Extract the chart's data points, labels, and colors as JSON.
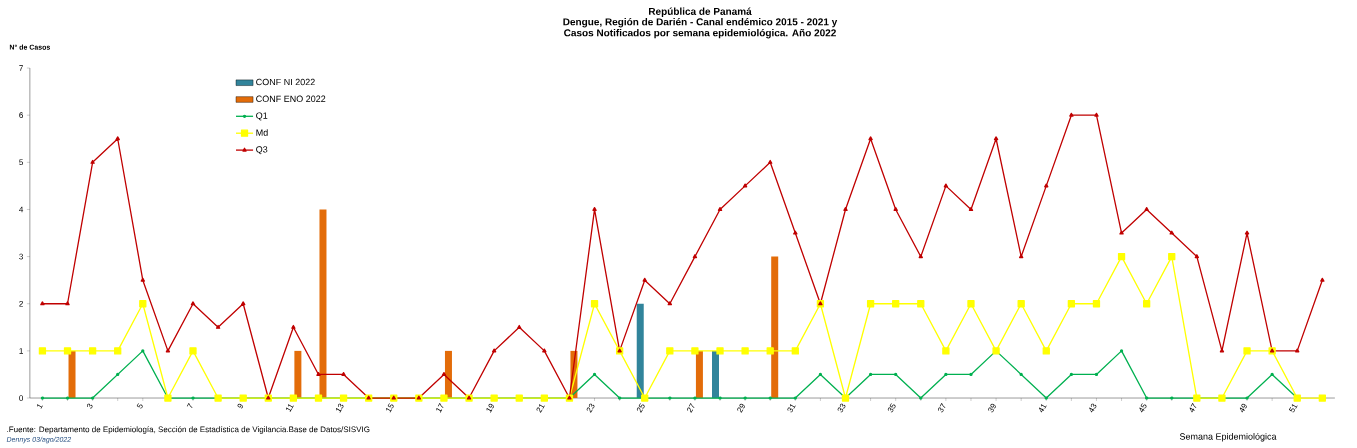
{
  "chart_data": {
    "type": "line",
    "title": "República de Panamá",
    "subtitle": "Dengue, Región de Darién - Canal endémico 2015 - 2021 y Casos Notificados por semana epidemiológica. Año 2022",
    "ylabel": "N° de Casos",
    "xlabel": "Semana Epidemiológica",
    "annotations": [
      ".Fuente: Departamento de Epidemiología, Sección de Estadística de Vigilancia.Base de Datos/SISVIG",
      "Dennys 03/ago/2022"
    ],
    "categories": [
      "1",
      null,
      "3",
      null,
      "5",
      null,
      "7",
      null,
      "9",
      null,
      "11",
      null,
      "13",
      null,
      "15",
      null,
      "17",
      null,
      "19",
      null,
      "21",
      null,
      "23",
      null,
      "25",
      null,
      "27",
      null,
      "29",
      null,
      "31",
      null,
      "33",
      null,
      "35",
      null,
      "37",
      null,
      "39",
      null,
      "41",
      null,
      "43",
      null,
      "45",
      null,
      "47",
      null,
      "49",
      null,
      "51",
      null
    ],
    "ylim": [
      0,
      7
    ],
    "yticks": [
      0,
      1,
      2,
      3,
      4,
      5,
      6,
      7
    ],
    "grid": false,
    "legend": "top left",
    "series": [
      {
        "name": "CONF NI 2022",
        "type": "bar",
        "color": "#31849b",
        "values": [
          null,
          null,
          null,
          null,
          null,
          null,
          null,
          null,
          null,
          null,
          null,
          null,
          null,
          null,
          null,
          null,
          null,
          null,
          null,
          null,
          null,
          null,
          null,
          null,
          2,
          null,
          null,
          1,
          null,
          null,
          null,
          null,
          null,
          null,
          null,
          null,
          null,
          null,
          null,
          null,
          null,
          null,
          null,
          null,
          null,
          null,
          null,
          null,
          null,
          null,
          null,
          null
        ]
      },
      {
        "name": "CONF ENO 2022",
        "type": "bar",
        "color": "#e36c09",
        "values": [
          null,
          1,
          null,
          null,
          null,
          null,
          null,
          null,
          null,
          null,
          1,
          4,
          null,
          null,
          null,
          null,
          1,
          null,
          null,
          null,
          null,
          1,
          null,
          null,
          null,
          null,
          1,
          null,
          null,
          3,
          null,
          null,
          null,
          null,
          null,
          null,
          null,
          null,
          null,
          null,
          null,
          null,
          null,
          null,
          null,
          null,
          null,
          null,
          null,
          null,
          null,
          null
        ]
      },
      {
        "name": "Q1",
        "color": "#00b050",
        "marker": "circle",
        "values": [
          0,
          0,
          0,
          0.5,
          1,
          0,
          0,
          0,
          0,
          0,
          0,
          0,
          0,
          0,
          0,
          0,
          0,
          0,
          0,
          0,
          0,
          0,
          0.5,
          0,
          0,
          0,
          0,
          0,
          0,
          0,
          0,
          0.5,
          0,
          0.5,
          0.5,
          0,
          0.5,
          0.5,
          1,
          0.5,
          0,
          0.5,
          0.5,
          1,
          0,
          0,
          0,
          0,
          0,
          0.5,
          0,
          null
        ]
      },
      {
        "name": "Md",
        "color": "#ffff00",
        "marker": "square",
        "values": [
          1,
          1,
          1,
          1,
          2,
          0,
          1,
          0,
          0,
          0,
          0,
          0,
          0,
          0,
          0,
          0,
          0,
          0,
          0,
          0,
          0,
          0,
          2,
          1,
          0,
          1,
          1,
          1,
          1,
          1,
          1,
          2,
          0,
          2,
          2,
          2,
          1,
          2,
          1,
          2,
          1,
          2,
          2,
          3,
          2,
          3,
          0,
          0,
          1,
          1,
          0,
          0
        ]
      },
      {
        "name": "Q3",
        "color": "#c00000",
        "marker": "triangle",
        "values": [
          2,
          2,
          5,
          5.5,
          2.5,
          1,
          2,
          1.5,
          2,
          0,
          1.5,
          0.5,
          0.5,
          0,
          0,
          0,
          0.5,
          0,
          1,
          1.5,
          1,
          0,
          4,
          1,
          2.5,
          2,
          3,
          4,
          4.5,
          5,
          3.5,
          2,
          4,
          5.5,
          4,
          3,
          4.5,
          4,
          5.5,
          3,
          4.5,
          6,
          6,
          3.5,
          4,
          3.5,
          3,
          1,
          3.5,
          1,
          1,
          2.5
        ]
      }
    ]
  }
}
